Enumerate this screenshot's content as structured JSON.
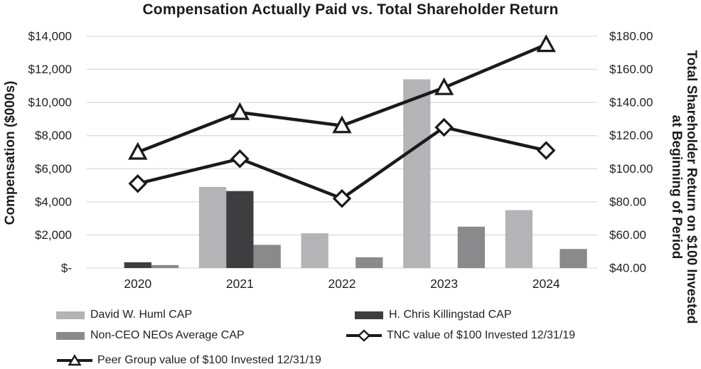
{
  "chart": {
    "title": "Compensation Actually Paid vs. Total Shareholder Return",
    "left_axis_title": "Compensation ($000s)",
    "right_axis_title_line1": "Total Shareholder Return on $100 Invested",
    "right_axis_title_line2": "at Beginning of Period"
  },
  "chart_data": {
    "type": "combo_bar_line",
    "title": "Compensation Actually Paid vs. Total Shareholder Return",
    "categories": [
      "2020",
      "2021",
      "2022",
      "2023",
      "2024"
    ],
    "left_axis": {
      "label": "Compensation ($000s)",
      "min": 0,
      "max": 14000,
      "step": 2000,
      "tick_labels": [
        "$-",
        "$2,000",
        "$4,000",
        "$6,000",
        "$8,000",
        "$10,000",
        "$12,000",
        "$14,000"
      ]
    },
    "right_axis": {
      "label": "Total Shareholder Return on $100 Invested at Beginning of Period",
      "min": 40,
      "max": 180,
      "step": 20,
      "tick_labels": [
        "$40.00",
        "$60.00",
        "$80.00",
        "$100.00",
        "$120.00",
        "$140.00",
        "$160.00",
        "$180.00"
      ]
    },
    "grid": "horizontal",
    "gridline_color": "#d9d9d9",
    "legend_position": "bottom",
    "bar_series": [
      {
        "name": "David W. Huml CAP",
        "slot": 0,
        "color": "#b4b4b7",
        "values": [
          null,
          4900,
          2100,
          11400,
          3500
        ]
      },
      {
        "name": "H. Chris Killingstad CAP",
        "slot": 1,
        "color": "#3e3e41",
        "values": [
          350,
          4650,
          null,
          null,
          null
        ]
      },
      {
        "name": "Non-CEO NEOs Average CAP",
        "slot": 2,
        "color": "#8a8a8d",
        "values": [
          180,
          1400,
          650,
          2500,
          1150
        ]
      }
    ],
    "line_series": [
      {
        "name": "TNC value of $100 Invested 12/31/19",
        "axis": "right",
        "marker": "diamond",
        "color": "#1a1a1a",
        "values": [
          91,
          106,
          82,
          125,
          111
        ]
      },
      {
        "name": "Peer Group value of $100 Invested 12/31/19",
        "axis": "right",
        "marker": "triangle",
        "color": "#1a1a1a",
        "values": [
          110,
          134,
          126,
          149,
          175
        ]
      }
    ]
  },
  "legend": {
    "items": [
      {
        "label": "David W. Huml CAP",
        "swatch": "bar",
        "color": "#b4b4b7"
      },
      {
        "label": "H. Chris Killingstad CAP",
        "swatch": "bar",
        "color": "#3e3e41"
      },
      {
        "label": "Non-CEO NEOs Average CAP",
        "swatch": "bar",
        "color": "#8a8a8d"
      },
      {
        "label": "TNC value of $100 Invested 12/31/19",
        "swatch": "line-diamond",
        "color": "#1a1a1a"
      },
      {
        "label": "Peer Group value of $100 Invested 12/31/19",
        "swatch": "line-triangle",
        "color": "#1a1a1a"
      }
    ]
  }
}
